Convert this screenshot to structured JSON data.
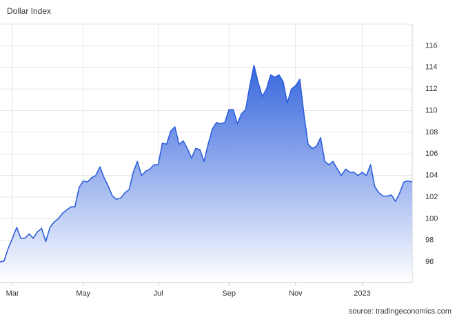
{
  "chart_data": {
    "type": "area",
    "title": "Dollar Index",
    "source": "source: tradingeconomics.com",
    "categories": [
      null,
      null,
      null,
      "Mar",
      null,
      null,
      null,
      null,
      null,
      null,
      null,
      null,
      null,
      null,
      null,
      null,
      null,
      null,
      null,
      null,
      "May",
      null,
      null,
      null,
      null,
      null,
      null,
      null,
      null,
      null,
      null,
      null,
      null,
      null,
      null,
      null,
      null,
      null,
      "Jul",
      null,
      null,
      null,
      null,
      null,
      null,
      null,
      null,
      null,
      null,
      null,
      null,
      null,
      null,
      null,
      null,
      "Sep",
      null,
      null,
      null,
      null,
      null,
      null,
      null,
      null,
      null,
      null,
      null,
      null,
      null,
      null,
      null,
      "Nov",
      null,
      null,
      null,
      null,
      null,
      null,
      null,
      null,
      null,
      null,
      null,
      null,
      null,
      null,
      null,
      "2023",
      null,
      null,
      null,
      null,
      null,
      null,
      null,
      null,
      null,
      null,
      null,
      null
    ],
    "values": [
      96.0,
      96.1,
      97.3,
      98.2,
      99.2,
      98.2,
      98.2,
      98.6,
      98.2,
      98.8,
      99.1,
      97.9,
      99.2,
      99.7,
      100.0,
      100.5,
      100.8,
      101.1,
      101.1,
      102.9,
      103.5,
      103.4,
      103.8,
      104.0,
      104.8,
      103.8,
      103.0,
      102.1,
      101.8,
      101.9,
      102.4,
      102.7,
      104.3,
      105.3,
      104.0,
      104.4,
      104.6,
      105.0,
      105.0,
      107.0,
      106.9,
      108.1,
      108.5,
      106.9,
      107.2,
      106.5,
      105.6,
      106.5,
      106.4,
      105.3,
      106.9,
      108.3,
      108.9,
      108.8,
      108.9,
      110.1,
      110.1,
      108.8,
      109.7,
      110.1,
      112.3,
      114.2,
      112.6,
      111.3,
      112.0,
      113.3,
      113.1,
      113.3,
      112.7,
      110.7,
      112.0,
      112.3,
      112.9,
      109.7,
      106.9,
      106.5,
      106.7,
      107.5,
      105.3,
      105.0,
      105.3,
      104.6,
      104.0,
      104.6,
      104.3,
      104.3,
      104.0,
      104.3,
      104.0,
      105.0,
      103.0,
      102.4,
      102.1,
      102.1,
      102.2,
      101.6,
      102.4,
      103.4,
      103.5,
      103.4
    ],
    "color": "#2d5fdc",
    "ylim": [
      94.1,
      118
    ],
    "yticks": [
      96,
      98,
      100,
      102,
      104,
      106,
      108,
      110,
      112,
      114,
      116
    ],
    "grid": true
  }
}
